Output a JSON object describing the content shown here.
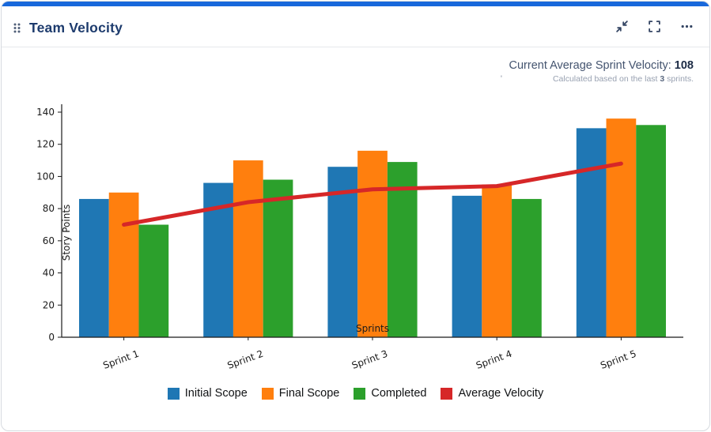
{
  "header": {
    "title": "Team Velocity"
  },
  "stats": {
    "label": "Current Average Sprint Velocity:",
    "value": "108",
    "subtext_prefix": "Calculated based on the last",
    "subtext_bold": "3",
    "subtext_suffix": "sprints.",
    "stray_mark": "'"
  },
  "colors": {
    "accent": "#1868db",
    "bar_blue": "#1f77b4",
    "bar_orange": "#ff7f0e",
    "bar_green": "#2ca02c",
    "line_red": "#d62728",
    "axis": "#1a1a1a"
  },
  "chart_data": {
    "type": "bar",
    "categories": [
      "Sprint 1",
      "Sprint 2",
      "Sprint 3",
      "Sprint 4",
      "Sprint 5"
    ],
    "series": [
      {
        "name": "Initial Scope",
        "type": "bar",
        "color": "#1f77b4",
        "values": [
          86,
          96,
          106,
          88,
          130
        ]
      },
      {
        "name": "Final Scope",
        "type": "bar",
        "color": "#ff7f0e",
        "values": [
          90,
          110,
          116,
          95,
          136
        ]
      },
      {
        "name": "Completed",
        "type": "bar",
        "color": "#2ca02c",
        "values": [
          70,
          98,
          109,
          86,
          132
        ]
      },
      {
        "name": "Average Velocity",
        "type": "line",
        "color": "#d62728",
        "values": [
          70,
          84,
          92,
          94,
          108
        ]
      }
    ],
    "xlabel": "Sprints",
    "ylabel": "Story Points",
    "ylim": [
      0,
      140
    ],
    "ytick_step": 20,
    "grid": false,
    "legend_position": "bottom"
  }
}
